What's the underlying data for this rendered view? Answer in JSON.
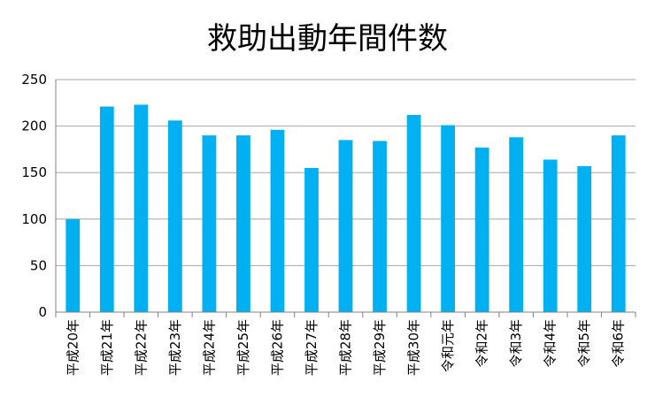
{
  "chart_data": {
    "type": "bar",
    "title": "救助出動年間件数",
    "xlabel": "",
    "ylabel": "",
    "categories": [
      "平成20年",
      "平成21年",
      "平成22年",
      "平成23年",
      "平成24年",
      "平成25年",
      "平成26年",
      "平成27年",
      "平成28年",
      "平成29年",
      "平成30年",
      "令和元年",
      "令和2年",
      "令和3年",
      "令和4年",
      "令和5年",
      "令和6年"
    ],
    "values": [
      100,
      221,
      223,
      206,
      190,
      190,
      196,
      155,
      185,
      184,
      212,
      201,
      177,
      188,
      164,
      157,
      190
    ],
    "ylim": [
      0,
      250
    ],
    "yticks": [
      0,
      50,
      100,
      150,
      200,
      250
    ],
    "grid": true,
    "legend": "none",
    "colors": {
      "bar": "#00B0F0",
      "grid": "#A6A6A6",
      "axis": "#808080"
    }
  }
}
